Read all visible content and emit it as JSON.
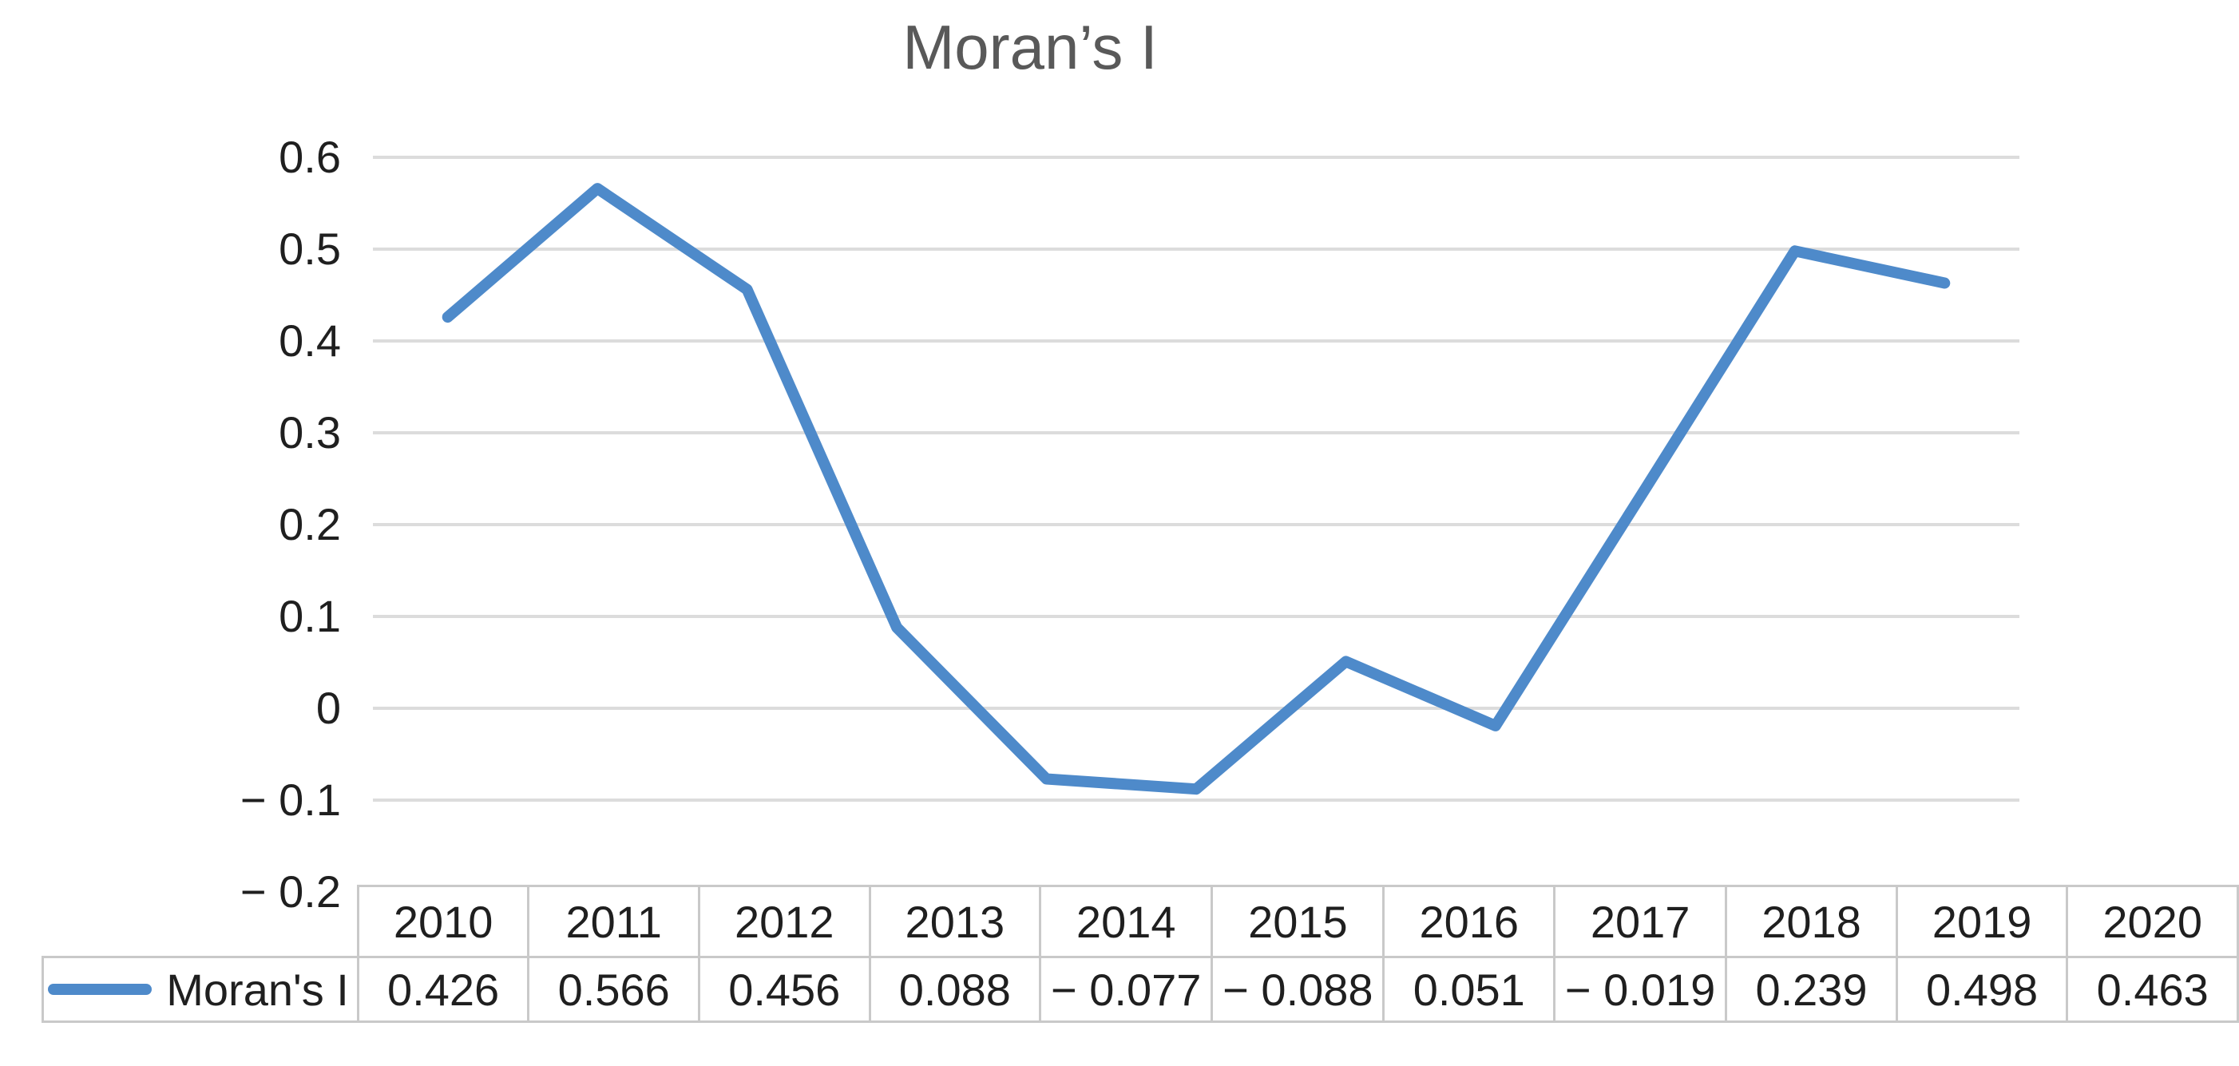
{
  "chart_data": {
    "type": "line",
    "title": "Moran’s I",
    "categories": [
      "2010",
      "2011",
      "2012",
      "2013",
      "2014",
      "2015",
      "2016",
      "2017",
      "2018",
      "2019",
      "2020"
    ],
    "series": [
      {
        "name": "Moran's I",
        "values": [
          0.426,
          0.566,
          0.456,
          0.088,
          -0.077,
          -0.088,
          0.051,
          -0.019,
          0.239,
          0.498,
          0.463
        ]
      }
    ],
    "xlabel": "",
    "ylabel": "",
    "ylim": [
      -0.2,
      0.6
    ],
    "y_ticks": [
      {
        "value": 0.6,
        "label": "0.6"
      },
      {
        "value": 0.5,
        "label": "0.5"
      },
      {
        "value": 0.4,
        "label": "0.4"
      },
      {
        "value": 0.3,
        "label": "0.3"
      },
      {
        "value": 0.2,
        "label": "0.2"
      },
      {
        "value": 0.1,
        "label": "0.1"
      },
      {
        "value": 0,
        "label": "0"
      },
      {
        "value": -0.1,
        "label": "− 0.1"
      },
      {
        "value": -0.2,
        "label": "− 0.2"
      }
    ],
    "grid": "horizontal",
    "legend_position": "data-table-left"
  },
  "data_table": {
    "legend_label": "Moran's I",
    "columns": [
      "2010",
      "2011",
      "2012",
      "2013",
      "2014",
      "2015",
      "2016",
      "2017",
      "2018",
      "2019",
      "2020"
    ],
    "values_display": [
      "0.426",
      "0.566",
      "0.456",
      "0.088",
      "− 0.077",
      "− 0.088",
      "0.051",
      "− 0.019",
      "0.239",
      "0.498",
      "0.463"
    ]
  },
  "colors": {
    "line": "#4e8aca",
    "gridline": "#dcdcdc",
    "table_border": "#c9c9c9",
    "title_text": "#595959",
    "axis_text": "#1f1f1f"
  }
}
